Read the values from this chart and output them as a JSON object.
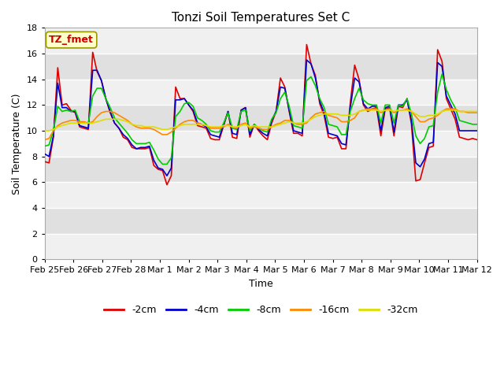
{
  "title": "Tonzi Soil Temperatures Set C",
  "xlabel": "Time",
  "ylabel": "Soil Temperature (C)",
  "ylim": [
    0,
    18
  ],
  "yticks": [
    0,
    2,
    4,
    6,
    8,
    10,
    12,
    14,
    16,
    18
  ],
  "x_labels": [
    "Feb 25",
    "Feb 26",
    "Feb 27",
    "Feb 28",
    "Mar 1",
    "Mar 2",
    "Mar 3",
    "Mar 4",
    "Mar 5",
    "Mar 6",
    "Mar 7",
    "Mar 8",
    "Mar 9",
    "Mar 10",
    "Mar 11",
    "Mar 12"
  ],
  "annotation_text": "TZ_fmet",
  "annotation_color": "#cc0000",
  "annotation_bg": "#ffffcc",
  "annotation_border": "#999900",
  "series": {
    "-2cm": {
      "color": "#dd0000",
      "lw": 1.2,
      "values": [
        7.6,
        7.5,
        9.5,
        14.9,
        12.0,
        12.1,
        11.6,
        11.4,
        10.3,
        10.2,
        10.1,
        16.1,
        14.6,
        13.9,
        12.5,
        11.4,
        10.6,
        10.2,
        9.5,
        9.3,
        8.7,
        8.6,
        8.6,
        8.6,
        8.7,
        7.3,
        7.0,
        6.9,
        5.8,
        6.5,
        13.4,
        12.5,
        12.5,
        12.0,
        11.5,
        10.4,
        10.3,
        10.2,
        9.4,
        9.3,
        9.3,
        10.4,
        11.5,
        9.5,
        9.4,
        11.6,
        11.8,
        9.5,
        10.5,
        10.0,
        9.6,
        9.3,
        10.6,
        11.5,
        14.1,
        13.4,
        11.5,
        9.8,
        9.8,
        9.6,
        16.7,
        15.2,
        14.3,
        12.1,
        11.2,
        9.5,
        9.4,
        9.5,
        8.6,
        8.6,
        12.2,
        15.1,
        14.0,
        12.0,
        11.5,
        11.7,
        11.8,
        9.6,
        11.7,
        11.8,
        9.6,
        11.9,
        11.8,
        12.5,
        10.5,
        6.1,
        6.2,
        7.5,
        8.7,
        8.8,
        16.3,
        15.4,
        12.5,
        11.7,
        10.9,
        9.5,
        9.4,
        9.3,
        9.4,
        9.3
      ]
    },
    "-4cm": {
      "color": "#0000cc",
      "lw": 1.2,
      "values": [
        8.2,
        8.0,
        9.6,
        13.7,
        11.8,
        11.8,
        11.5,
        11.5,
        10.4,
        10.3,
        10.2,
        14.7,
        14.7,
        13.9,
        12.5,
        11.5,
        10.6,
        10.2,
        9.7,
        9.4,
        8.9,
        8.6,
        8.7,
        8.7,
        8.8,
        7.7,
        7.1,
        7.0,
        6.5,
        7.1,
        12.4,
        12.4,
        12.5,
        12.0,
        11.6,
        10.6,
        10.5,
        10.3,
        9.7,
        9.6,
        9.5,
        10.5,
        11.5,
        9.8,
        9.7,
        11.6,
        11.8,
        9.7,
        10.5,
        10.1,
        9.8,
        9.6,
        10.8,
        11.5,
        13.4,
        13.3,
        11.6,
        10.0,
        9.9,
        9.8,
        15.5,
        15.2,
        14.1,
        12.3,
        11.4,
        9.8,
        9.7,
        9.6,
        9.0,
        8.9,
        11.8,
        14.1,
        13.8,
        12.1,
        11.7,
        11.9,
        11.9,
        10.0,
        11.8,
        11.9,
        9.9,
        12.0,
        12.0,
        12.4,
        10.8,
        7.5,
        7.2,
        7.8,
        9.0,
        9.1,
        15.3,
        15.0,
        12.7,
        12.0,
        11.3,
        10.0,
        10.0,
        10.0,
        10.0,
        10.0
      ]
    },
    "-8cm": {
      "color": "#00cc00",
      "lw": 1.2,
      "values": [
        8.8,
        8.9,
        10.0,
        11.9,
        11.5,
        11.6,
        11.5,
        11.6,
        10.7,
        10.6,
        10.6,
        12.7,
        13.3,
        13.3,
        12.5,
        11.8,
        11.0,
        10.6,
        10.2,
        9.8,
        9.3,
        9.0,
        9.0,
        9.0,
        9.1,
        8.5,
        7.8,
        7.4,
        7.4,
        7.9,
        11.1,
        11.5,
        12.1,
        12.2,
        11.9,
        11.0,
        10.8,
        10.5,
        10.0,
        9.9,
        9.9,
        10.6,
        11.4,
        10.2,
        10.1,
        11.5,
        11.6,
        10.0,
        10.5,
        10.2,
        10.0,
        9.9,
        10.9,
        11.4,
        12.5,
        13.0,
        11.9,
        10.4,
        10.3,
        10.2,
        13.9,
        14.2,
        13.5,
        12.5,
        11.8,
        10.5,
        10.4,
        10.3,
        9.7,
        9.7,
        11.5,
        12.5,
        13.3,
        12.4,
        12.1,
        12.0,
        12.0,
        10.6,
        12.0,
        12.0,
        10.6,
        12.0,
        11.9,
        12.5,
        11.3,
        9.6,
        9.0,
        9.4,
        10.3,
        10.4,
        13.0,
        14.4,
        13.2,
        12.4,
        11.8,
        10.8,
        10.7,
        10.6,
        10.5,
        10.5
      ]
    },
    "-16cm": {
      "color": "#ff8800",
      "lw": 1.2,
      "values": [
        9.3,
        9.4,
        10.0,
        10.4,
        10.6,
        10.7,
        10.8,
        10.8,
        10.7,
        10.7,
        10.6,
        10.7,
        11.1,
        11.4,
        11.5,
        11.5,
        11.4,
        11.2,
        11.0,
        10.8,
        10.5,
        10.3,
        10.2,
        10.2,
        10.2,
        10.1,
        9.9,
        9.7,
        9.7,
        9.9,
        10.2,
        10.5,
        10.7,
        10.8,
        10.8,
        10.6,
        10.5,
        10.4,
        10.2,
        10.2,
        10.2,
        10.3,
        10.5,
        10.3,
        10.2,
        10.5,
        10.6,
        10.2,
        10.3,
        10.2,
        10.1,
        10.1,
        10.3,
        10.5,
        10.6,
        10.8,
        10.8,
        10.6,
        10.5,
        10.5,
        10.6,
        11.0,
        11.3,
        11.4,
        11.5,
        11.2,
        11.1,
        11.0,
        10.7,
        10.7,
        10.8,
        11.0,
        11.5,
        11.6,
        11.7,
        11.7,
        11.7,
        11.4,
        11.6,
        11.7,
        11.4,
        11.6,
        11.6,
        11.7,
        11.5,
        11.1,
        10.7,
        10.7,
        10.9,
        11.0,
        11.2,
        11.5,
        11.7,
        11.7,
        11.7,
        11.5,
        11.5,
        11.4,
        11.4,
        11.4
      ]
    },
    "-32cm": {
      "color": "#dddd00",
      "lw": 1.2,
      "values": [
        10.0,
        10.0,
        10.1,
        10.3,
        10.4,
        10.5,
        10.6,
        10.6,
        10.6,
        10.6,
        10.6,
        10.6,
        10.7,
        10.8,
        10.9,
        10.9,
        10.9,
        10.9,
        10.8,
        10.7,
        10.5,
        10.4,
        10.4,
        10.3,
        10.3,
        10.3,
        10.2,
        10.1,
        10.1,
        10.2,
        10.3,
        10.4,
        10.5,
        10.5,
        10.5,
        10.5,
        10.5,
        10.4,
        10.3,
        10.3,
        10.3,
        10.4,
        10.4,
        10.3,
        10.3,
        10.4,
        10.5,
        10.3,
        10.4,
        10.3,
        10.3,
        10.3,
        10.3,
        10.4,
        10.5,
        10.6,
        10.7,
        10.6,
        10.6,
        10.6,
        10.7,
        10.9,
        11.1,
        11.2,
        11.3,
        11.3,
        11.3,
        11.3,
        11.2,
        11.2,
        11.2,
        11.3,
        11.5,
        11.6,
        11.6,
        11.6,
        11.6,
        11.5,
        11.6,
        11.6,
        11.5,
        11.6,
        11.6,
        11.6,
        11.5,
        11.3,
        11.1,
        11.1,
        11.2,
        11.2,
        11.3,
        11.5,
        11.6,
        11.6,
        11.6,
        11.5,
        11.5,
        11.5,
        11.5,
        11.5
      ]
    }
  },
  "plot_bg_light": "#f0f0f0",
  "plot_bg_dark": "#e0e0e0",
  "grid_color": "#ffffff",
  "fig_bg": "#ffffff",
  "title_fontsize": 11,
  "axis_fontsize": 9,
  "tick_fontsize": 8
}
